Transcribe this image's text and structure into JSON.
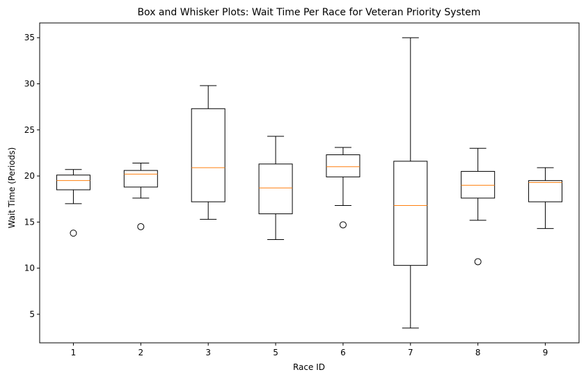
{
  "chart_data": {
    "type": "box",
    "title": "Box and Whisker Plots: Wait Time Per Race for Veteran Priority System",
    "xlabel": "Race ID",
    "ylabel": "Wait Time (Periods)",
    "categories": [
      "1",
      "2",
      "3",
      "5",
      "6",
      "7",
      "8",
      "9"
    ],
    "yticks": [
      5,
      10,
      15,
      20,
      25,
      30,
      35
    ],
    "ylim": [
      1.9,
      36.6
    ],
    "grid": false,
    "boxes": [
      {
        "category": "1",
        "whisker_low": 17.0,
        "q1": 18.5,
        "median": 19.5,
        "q3": 20.1,
        "whisker_high": 20.7,
        "outliers": [
          13.8
        ]
      },
      {
        "category": "2",
        "whisker_low": 17.6,
        "q1": 18.8,
        "median": 20.2,
        "q3": 20.6,
        "whisker_high": 21.4,
        "outliers": [
          14.5
        ]
      },
      {
        "category": "3",
        "whisker_low": 15.3,
        "q1": 17.2,
        "median": 20.9,
        "q3": 27.3,
        "whisker_high": 29.8,
        "outliers": []
      },
      {
        "category": "5",
        "whisker_low": 13.1,
        "q1": 15.9,
        "median": 18.7,
        "q3": 21.3,
        "whisker_high": 24.3,
        "outliers": []
      },
      {
        "category": "6",
        "whisker_low": 16.8,
        "q1": 19.9,
        "median": 21.0,
        "q3": 22.3,
        "whisker_high": 23.1,
        "outliers": [
          14.7
        ]
      },
      {
        "category": "7",
        "whisker_low": 3.5,
        "q1": 10.3,
        "median": 16.8,
        "q3": 21.6,
        "whisker_high": 35.0,
        "outliers": []
      },
      {
        "category": "8",
        "whisker_low": 15.2,
        "q1": 17.6,
        "median": 19.0,
        "q3": 20.5,
        "whisker_high": 23.0,
        "outliers": [
          10.7
        ]
      },
      {
        "category": "9",
        "whisker_low": 14.3,
        "q1": 17.2,
        "median": 19.3,
        "q3": 19.5,
        "whisker_high": 20.9,
        "outliers": []
      }
    ],
    "colors": {
      "box": "#000000",
      "median": "#ff7f0e",
      "outlier": "#000000",
      "axes": "#000000"
    }
  }
}
